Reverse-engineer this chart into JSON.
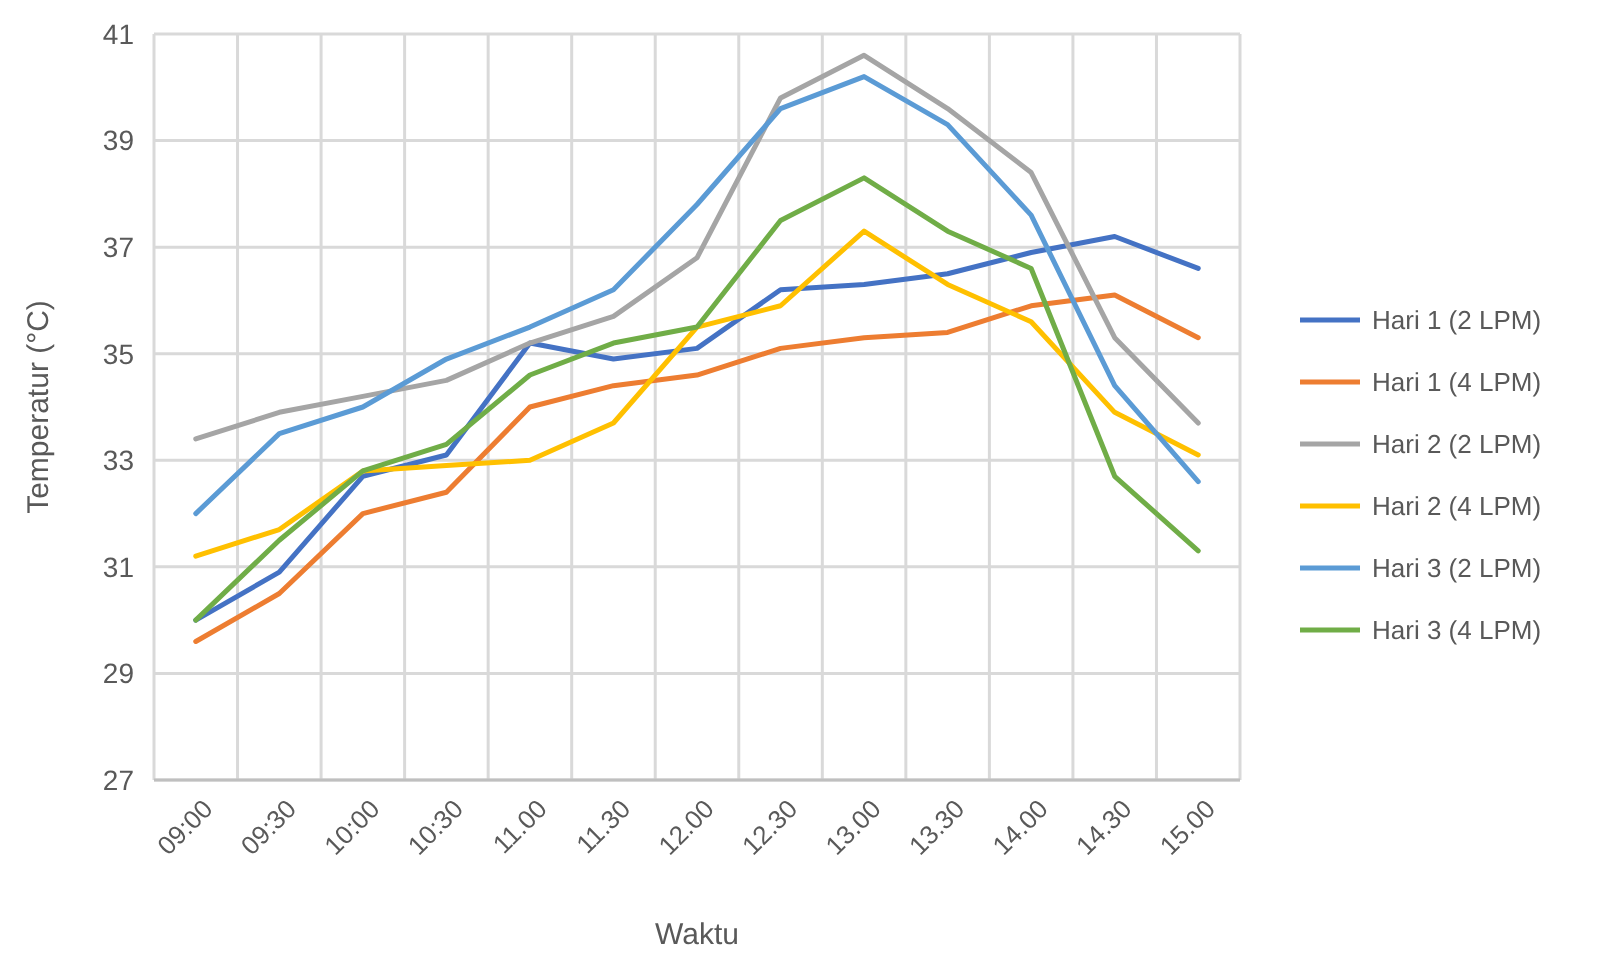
{
  "chart_data": {
    "type": "line",
    "xlabel": "Waktu",
    "ylabel": "Temperatur (°C)",
    "categories": [
      "09:00",
      "09:30",
      "10:00",
      "10:30",
      "11.00",
      "11.30",
      "12.00",
      "12.30",
      "13.00",
      "13.30",
      "14.00",
      "14.30",
      "15.00"
    ],
    "series": [
      {
        "name": "Hari 1 (2 LPM)",
        "color": "#4472c4",
        "values": [
          30.0,
          30.9,
          32.7,
          33.1,
          35.2,
          34.9,
          35.1,
          36.2,
          36.3,
          36.5,
          36.9,
          37.2,
          36.6
        ]
      },
      {
        "name": "Hari 1 (4 LPM)",
        "color": "#ed7d31",
        "values": [
          29.6,
          30.5,
          32.0,
          32.4,
          34.0,
          34.4,
          34.6,
          35.1,
          35.3,
          35.4,
          35.9,
          36.1,
          35.3
        ]
      },
      {
        "name": "Hari 2 (2 LPM)",
        "color": "#a5a5a5",
        "values": [
          33.4,
          33.9,
          34.2,
          34.5,
          35.2,
          35.7,
          36.8,
          39.8,
          40.6,
          39.6,
          38.4,
          35.3,
          33.7
        ]
      },
      {
        "name": "Hari 2 (4 LPM)",
        "color": "#ffc000",
        "values": [
          31.2,
          31.7,
          32.8,
          32.9,
          33.0,
          33.7,
          35.5,
          35.9,
          37.3,
          36.3,
          35.6,
          33.9,
          33.1
        ]
      },
      {
        "name": "Hari 3 (2 LPM)",
        "color": "#5b9bd5",
        "values": [
          32.0,
          33.5,
          34.0,
          34.9,
          35.5,
          36.2,
          37.8,
          39.6,
          40.2,
          39.3,
          37.6,
          34.4,
          32.6
        ]
      },
      {
        "name": "Hari 3 (4 LPM)",
        "color": "#70ad47",
        "values": [
          30.0,
          31.5,
          32.8,
          33.3,
          34.6,
          35.2,
          35.5,
          37.5,
          38.3,
          37.3,
          36.6,
          32.7,
          31.3
        ]
      }
    ],
    "ylim": [
      27,
      41
    ],
    "yticks": [
      27,
      29,
      31,
      33,
      35,
      37,
      39,
      41
    ],
    "grid": true,
    "legend": "right",
    "marker": "none",
    "line_style": "solid"
  }
}
